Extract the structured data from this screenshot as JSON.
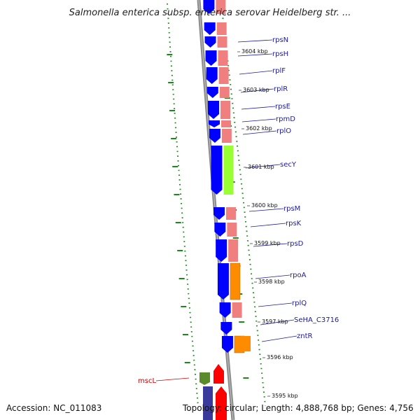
{
  "title": "Salmonella enterica subsp. enterica serovar Heidelberg str. ...",
  "footer": {
    "accession": "Accession: NC_011083",
    "summary": "Topology: circular; Length: 4,888,768 bp; Genes: 4,756"
  },
  "kbp_markers": [
    {
      "label": "3604 kbp"
    },
    {
      "label": "3603 kbp"
    },
    {
      "label": "3602 kbp"
    },
    {
      "label": "3601 kbp"
    },
    {
      "label": "3600 kbp"
    },
    {
      "label": "3599 kbp"
    },
    {
      "label": "3598 kbp"
    },
    {
      "label": "3597 kbp"
    },
    {
      "label": "3596 kbp"
    },
    {
      "label": "3595 kbp"
    }
  ],
  "genes": [
    {
      "name": "rpsN"
    },
    {
      "name": "rpsH"
    },
    {
      "name": "rplF"
    },
    {
      "name": "rplR"
    },
    {
      "name": "rpsE"
    },
    {
      "name": "rpmD"
    },
    {
      "name": "rplO"
    },
    {
      "name": "secY"
    },
    {
      "name": "rpsM"
    },
    {
      "name": "rpsK"
    },
    {
      "name": "rpsD"
    },
    {
      "name": "rpoA"
    },
    {
      "name": "rplQ"
    },
    {
      "name": "SeHA_C3716"
    },
    {
      "name": "zntR"
    },
    {
      "name": "mscL"
    }
  ],
  "colors": {
    "cds_forward": "#0000ff",
    "cds_reverse": "#3a3a9c",
    "cog_translation": "#f08080",
    "cog_secretion": "#99ff33",
    "cog_transcription": "#ff8c00",
    "cog_other": "#5a8a2a",
    "rna_red": "#ff0000",
    "backbone": "#888888",
    "gc_dots": "#1a8a1a",
    "label_blue": "#1a1aa6",
    "label_red": "#cc0000"
  }
}
